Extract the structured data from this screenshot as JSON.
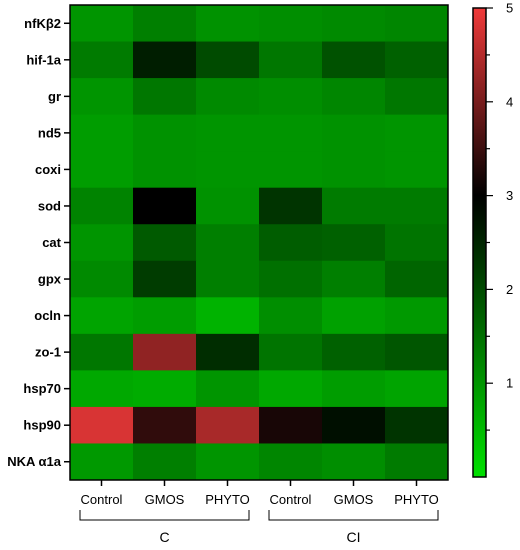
{
  "chart_data": {
    "type": "heatmap",
    "rows": [
      "nfKβ2",
      "hif-1a",
      "gr",
      "nd5",
      "coxi",
      "sod",
      "cat",
      "gpx",
      "ocln",
      "zo-1",
      "hsp70",
      "hsp90",
      "NKA α1a"
    ],
    "columns": [
      "Control",
      "GMOS",
      "PHYTO",
      "Control",
      "GMOS",
      "PHYTO"
    ],
    "groups": [
      {
        "name": "C",
        "columns": [
          0,
          1,
          2
        ]
      },
      {
        "name": "CI",
        "columns": [
          3,
          4,
          5
        ]
      }
    ],
    "values": [
      [
        1.0,
        1.3,
        1.05,
        1.1,
        1.15,
        1.2
      ],
      [
        1.35,
        2.6,
        2.0,
        1.4,
        1.9,
        1.7
      ],
      [
        1.0,
        1.4,
        1.15,
        1.1,
        1.2,
        1.4
      ],
      [
        0.9,
        1.05,
        1.0,
        1.0,
        1.05,
        1.0
      ],
      [
        0.9,
        1.05,
        1.0,
        1.0,
        1.05,
        1.0
      ],
      [
        1.25,
        3.0,
        1.05,
        2.3,
        1.35,
        1.35
      ],
      [
        1.0,
        1.8,
        1.3,
        1.75,
        1.7,
        1.45
      ],
      [
        1.15,
        2.2,
        1.3,
        1.5,
        1.3,
        1.65
      ],
      [
        0.8,
        0.9,
        0.6,
        1.1,
        0.85,
        0.95
      ],
      [
        1.4,
        4.2,
        2.4,
        1.45,
        1.7,
        1.85
      ],
      [
        0.75,
        0.7,
        1.0,
        0.75,
        0.9,
        0.8
      ],
      [
        4.8,
        3.4,
        4.4,
        3.2,
        2.8,
        2.3
      ],
      [
        0.95,
        1.3,
        1.0,
        1.2,
        1.1,
        1.35
      ]
    ],
    "colorbar": {
      "min": 0,
      "max": 5,
      "ticks": [
        1,
        2,
        3,
        4,
        5
      ],
      "colors": {
        "low": "#00e000",
        "mid": "#000000",
        "high": "#f03a3a"
      },
      "mid_value": 3
    },
    "grid": false
  }
}
